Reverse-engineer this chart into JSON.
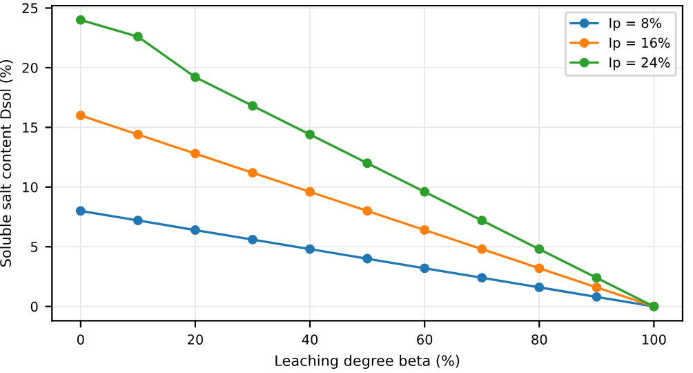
{
  "chart_data": {
    "type": "line",
    "xlabel": "Leaching degree beta (%)",
    "ylabel": "Soluble salt content Dsol (%)",
    "x": [
      0,
      10,
      20,
      30,
      40,
      50,
      60,
      70,
      80,
      90,
      100
    ],
    "series": [
      {
        "name": "Ip = 8%",
        "color": "#1f77b4",
        "values": [
          8,
          7.2,
          6.4,
          5.6,
          4.8,
          4,
          3.2,
          2.4,
          1.6,
          0.8,
          0
        ]
      },
      {
        "name": "Ip = 16%",
        "color": "#ff7f0e",
        "values": [
          16,
          14.4,
          12.8,
          11.2,
          9.6,
          8,
          6.4,
          4.8,
          3.2,
          1.6,
          0
        ]
      },
      {
        "name": "Ip = 24%",
        "color": "#2ca02c",
        "values": [
          24,
          22.6,
          19.2,
          16.8,
          14.4,
          12,
          9.6,
          7.2,
          4.8,
          2.4,
          0
        ]
      }
    ],
    "xlim": [
      -5,
      105
    ],
    "ylim": [
      -1.2,
      25.2
    ],
    "xticks": [
      0,
      20,
      40,
      60,
      80,
      100
    ],
    "yticks": [
      0,
      5,
      10,
      15,
      20,
      25
    ],
    "grid": true,
    "legend": "top right",
    "marker": "circle",
    "line_style": "solid"
  }
}
